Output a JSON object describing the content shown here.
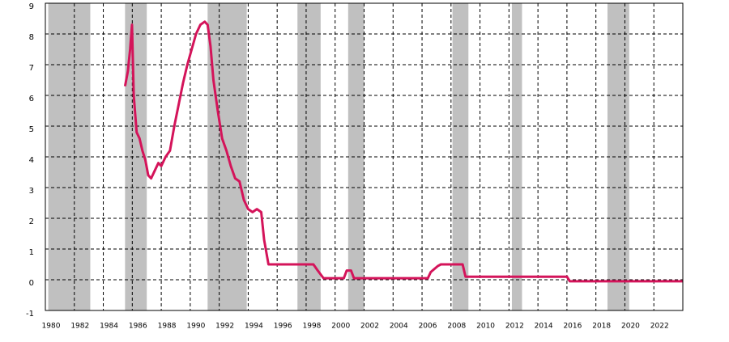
{
  "chart_data": {
    "type": "line",
    "x": [
      1985.5,
      1985.7,
      1985.85,
      1985.98,
      1986.1,
      1986.3,
      1986.5,
      1986.7,
      1986.9,
      1987.1,
      1987.3,
      1987.6,
      1987.8,
      1988.0,
      1988.3,
      1988.6,
      1988.9,
      1989.2,
      1989.5,
      1989.8,
      1990.1,
      1990.4,
      1990.7,
      1991.0,
      1991.2,
      1991.4,
      1991.6,
      1991.9,
      1992.2,
      1992.5,
      1992.8,
      1993.1,
      1993.4,
      1993.7,
      1994.0,
      1994.3,
      1994.6,
      1994.9,
      1995.1,
      1995.4,
      1995.8,
      1996.5,
      1997.5,
      1998.5,
      1998.8,
      1999.2,
      2000.6,
      2000.8,
      2001.1,
      2001.3,
      2006.4,
      2006.6,
      2007.1,
      2007.3,
      2008.8,
      2009.0,
      2012.0,
      2016.0,
      2016.2,
      2024
    ],
    "series": [
      {
        "color": "#d4145a",
        "values": [
          6.3,
          6.8,
          7.5,
          8.3,
          6.0,
          4.8,
          4.6,
          4.2,
          3.9,
          3.4,
          3.3,
          3.6,
          3.8,
          3.7,
          4.0,
          4.2,
          5.0,
          5.7,
          6.4,
          7.0,
          7.5,
          8.0,
          8.3,
          8.4,
          8.3,
          7.6,
          6.5,
          5.5,
          4.6,
          4.2,
          3.7,
          3.3,
          3.2,
          2.6,
          2.3,
          2.2,
          2.3,
          2.2,
          1.3,
          0.5,
          0.5,
          0.5,
          0.5,
          0.5,
          0.3,
          0.05,
          0.05,
          0.3,
          0.3,
          0.05,
          0.05,
          0.25,
          0.45,
          0.5,
          0.5,
          0.1,
          0.1,
          0.1,
          -0.05,
          -0.05
        ]
      }
    ],
    "shaded_periods": [
      [
        1980.2,
        1983.1
      ],
      [
        1985.5,
        1987.0
      ],
      [
        1991.2,
        1993.9
      ],
      [
        1997.4,
        1999.0
      ],
      [
        2000.9,
        2002.0
      ],
      [
        2008.1,
        2009.2
      ],
      [
        2012.2,
        2012.9
      ],
      [
        2018.8,
        2020.3
      ]
    ],
    "shade_color": "#c0c0c0",
    "xlim": [
      1980,
      2024
    ],
    "xticks": [
      1980,
      1982,
      1984,
      1986,
      1988,
      1990,
      1992,
      1994,
      1996,
      1998,
      2000,
      2002,
      2004,
      2006,
      2008,
      2010,
      2012,
      2014,
      2016,
      2018,
      2020,
      2022
    ],
    "ylim": [
      -1,
      9
    ],
    "yticks": [
      -1,
      0,
      1,
      2,
      3,
      4,
      5,
      6,
      7,
      8,
      9
    ],
    "grid": true
  }
}
